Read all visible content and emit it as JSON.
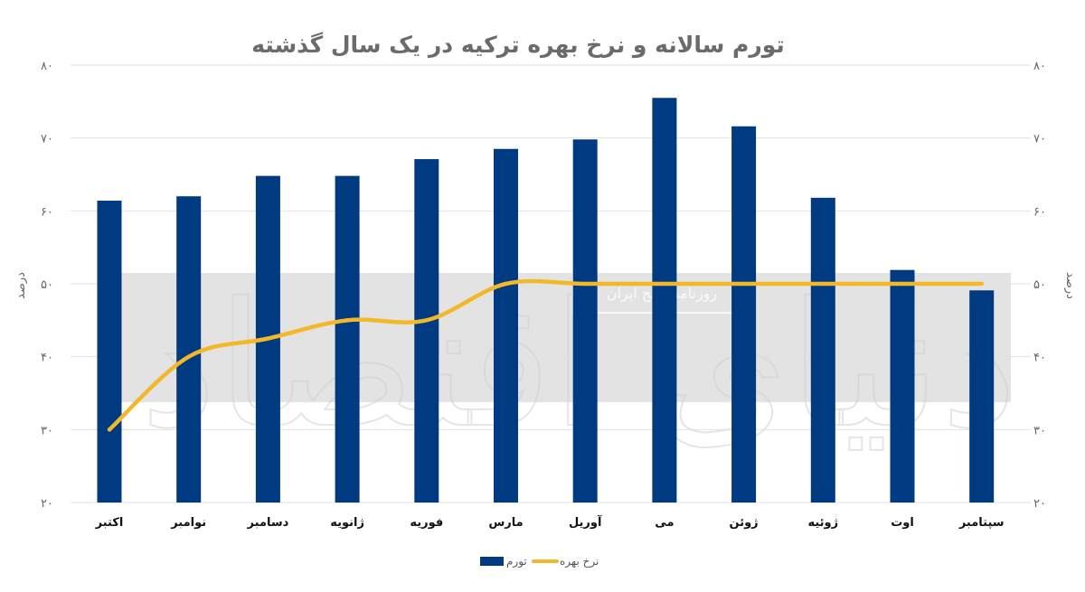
{
  "chart_data": {
    "type": "bar+line",
    "title": "تورم سالانه و نرخ بهره ترکیه در یک سال گذشته",
    "ylabel_left": "درصد",
    "ylabel_right": "درصد",
    "ylim": [
      20,
      80
    ],
    "yticks": [
      20,
      30,
      40,
      50,
      60,
      70,
      80
    ],
    "ytick_labels": [
      "۲۰",
      "۳۰",
      "۴۰",
      "۵۰",
      "۶۰",
      "۷۰",
      "۸۰"
    ],
    "grid": true,
    "legend_position": "bottom-center",
    "categories": [
      "اکتبر",
      "نوامبر",
      "دسامبر",
      "ژانویه",
      "فوریه",
      "مارس",
      "آوریل",
      "می",
      "ژوئن",
      "ژوئیه",
      "اوت",
      "سپتامبر"
    ],
    "series": [
      {
        "name": "تورم",
        "type": "bar",
        "color": "#003a80",
        "values": [
          61.4,
          62,
          64.8,
          64.8,
          67.1,
          68.5,
          69.8,
          75.5,
          71.6,
          61.8,
          51.9,
          49.1
        ]
      },
      {
        "name": "نرخ بهره",
        "type": "line",
        "color": "#f2b82a",
        "values": [
          30,
          40,
          42.5,
          45,
          45,
          50,
          50,
          50,
          50,
          50,
          50,
          50
        ]
      }
    ]
  },
  "watermark": {
    "logo_text": "دنیای اقتصاد",
    "subtitle": "روزنامه صبح ایران"
  }
}
